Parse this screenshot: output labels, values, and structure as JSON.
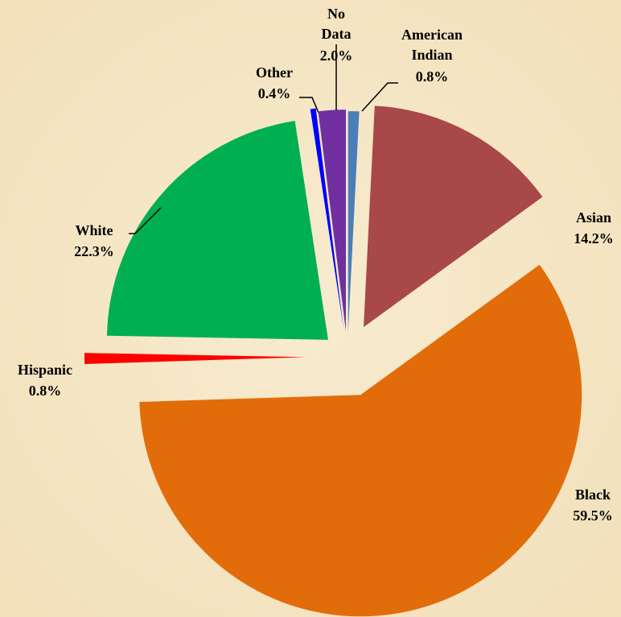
{
  "chart_data": {
    "type": "pie",
    "categories": [
      "American Indian",
      "Asian",
      "Black",
      "Hispanic",
      "White",
      "Other",
      "No Data"
    ],
    "values": [
      0.8,
      14.2,
      59.5,
      0.8,
      22.3,
      0.4,
      2.0
    ],
    "value_labels": [
      "0.8%",
      "14.2%",
      "59.5%",
      "0.8%",
      "22.3%",
      "0.4%",
      "2.0%"
    ],
    "colors": [
      "#4a7ebb",
      "#a84848",
      "#e36c0a",
      "#ff0000",
      "#00b050",
      "#0000ff",
      "#7030a0"
    ]
  }
}
